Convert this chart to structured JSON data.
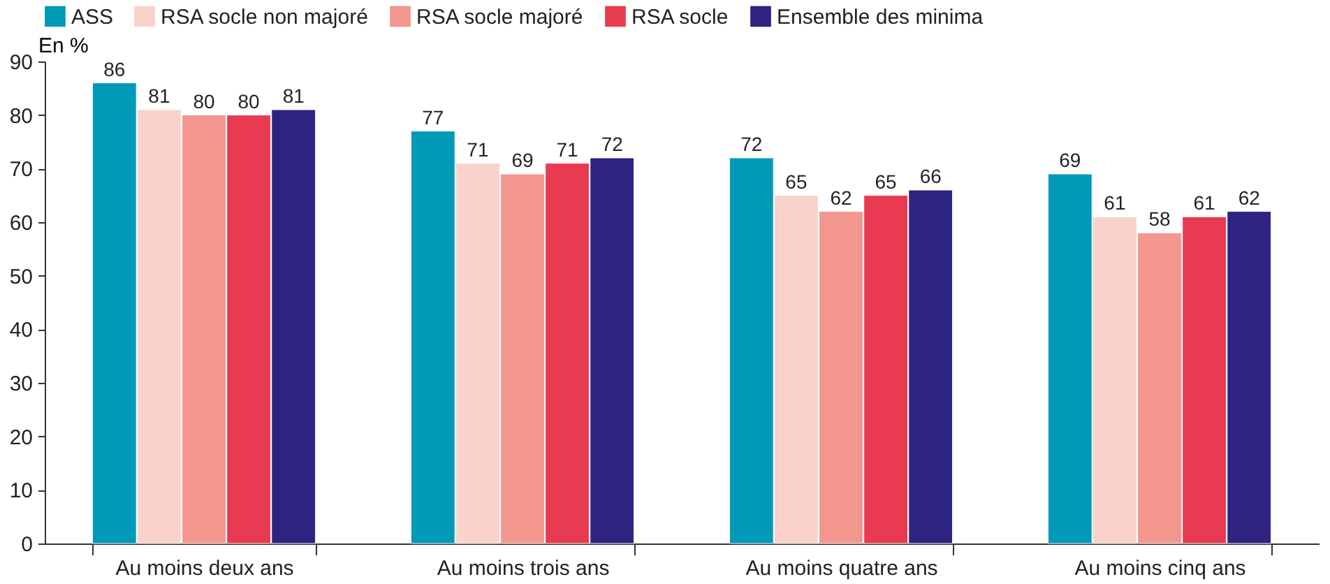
{
  "chart_data": {
    "type": "bar",
    "ylabel": "En %",
    "categories": [
      "Au moins deux ans",
      "Au moins trois ans",
      "Au moins quatre ans",
      "Au moins cinq ans"
    ],
    "series": [
      {
        "name": "ASS",
        "color": "#0099b8",
        "values": [
          86,
          77,
          72,
          69
        ]
      },
      {
        "name": "RSA socle non majoré",
        "color": "#f9d3cb",
        "values": [
          81,
          71,
          65,
          61
        ]
      },
      {
        "name": "RSA socle majoré",
        "color": "#f2968e",
        "values": [
          80,
          69,
          62,
          58
        ]
      },
      {
        "name": "RSA socle",
        "color": "#e83a50",
        "values": [
          80,
          71,
          65,
          61
        ]
      },
      {
        "name": "Ensemble des minima",
        "color": "#2d2382",
        "values": [
          81,
          72,
          66,
          62
        ]
      }
    ],
    "ylim": [
      0,
      90
    ],
    "yticks": [
      0,
      10,
      20,
      30,
      40,
      50,
      60,
      70,
      80,
      90
    ],
    "data_labels": true,
    "legend": "top left",
    "grid": false
  }
}
